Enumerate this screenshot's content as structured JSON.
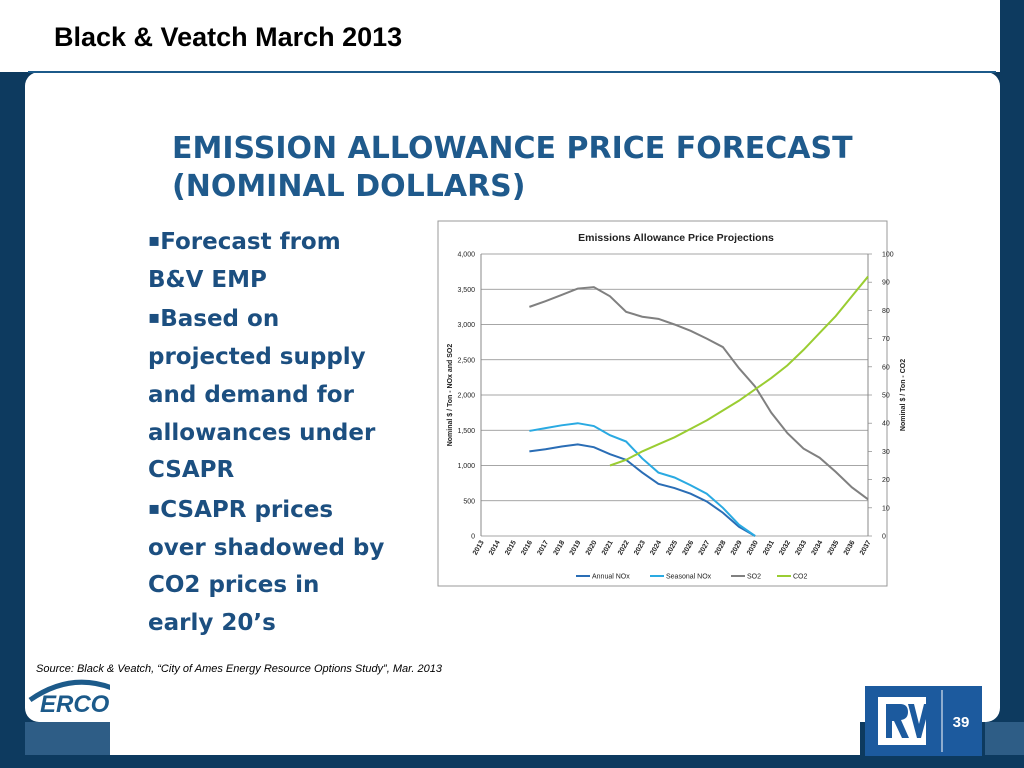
{
  "header": {
    "title": "Black & Veatch March 2013"
  },
  "slide_title_lines": [
    "EMISSION ALLOWANCE PRICE FORECAST",
    "(NOMINAL DOLLARS)"
  ],
  "bullets": [
    "Forecast from B&V EMP",
    "Based on projected supply and demand for allowances under CSAPR",
    "CSAPR prices over shadowed by CO2 prices in early 20’s"
  ],
  "source": "Source: Black & Veatch, “City of Ames Energy Resource Options Study”, Mar. 2013",
  "footer": {
    "logo": "ERCOT",
    "page_number": "39"
  },
  "chart_data": {
    "type": "line",
    "title": "Emissions Allowance Price Projections",
    "ylabel": "Nominal $ / Ton - NOx and SO2",
    "y2label": "Nominal $ / Ton - CO2",
    "categories": [
      "2013",
      "2014",
      "2015",
      "2016",
      "2017",
      "2018",
      "2019",
      "2020",
      "2021",
      "2022",
      "2023",
      "2024",
      "2025",
      "2026",
      "2027",
      "2028",
      "2029",
      "2030",
      "2031",
      "2032",
      "2033",
      "2034",
      "2035",
      "2036",
      "2037"
    ],
    "series": [
      {
        "name": "Annual NOx",
        "color": "#2a6db5",
        "values": [
          null,
          null,
          null,
          1200,
          1230,
          1270,
          1300,
          1260,
          1160,
          1080,
          900,
          740,
          680,
          600,
          490,
          330,
          130,
          0,
          null,
          null,
          null,
          null,
          null,
          null,
          null
        ]
      },
      {
        "name": "Seasonal NOx",
        "color": "#2aaae2",
        "values": [
          null,
          null,
          null,
          1490,
          1530,
          1570,
          1600,
          1560,
          1430,
          1340,
          1100,
          900,
          830,
          720,
          600,
          400,
          160,
          0,
          null,
          null,
          null,
          null,
          null,
          null,
          null
        ]
      },
      {
        "name": "SO2",
        "color": "#808080",
        "values": [
          null,
          null,
          null,
          3250,
          3330,
          3420,
          3510,
          3530,
          3400,
          3180,
          3110,
          3080,
          3000,
          2910,
          2800,
          2680,
          2380,
          2120,
          1750,
          1460,
          1240,
          1110,
          910,
          690,
          520
        ]
      },
      {
        "name": "CO2",
        "color": "#9acd32",
        "axis": "y2",
        "values": [
          null,
          null,
          null,
          null,
          null,
          null,
          null,
          null,
          25,
          27,
          30,
          32.5,
          35,
          38,
          41,
          44.5,
          48,
          52,
          56,
          60.5,
          66,
          72,
          78,
          85,
          92
        ]
      }
    ],
    "ylim": [
      0,
      4000
    ],
    "yticks": [
      0,
      500,
      {
        "value": 1000,
        "label": "1,000"
      },
      {
        "value": 1500,
        "label": "1,500"
      },
      {
        "value": 2000,
        "label": "2,000"
      },
      {
        "value": 2500,
        "label": "2,500"
      },
      {
        "value": 3000,
        "label": "3,000"
      },
      {
        "value": 3500,
        "label": "3,500"
      },
      {
        "value": 4000,
        "label": "4,000"
      }
    ],
    "y2lim": [
      0,
      100
    ],
    "y2ticks": [
      0,
      10,
      20,
      30,
      40,
      50,
      60,
      70,
      80,
      90,
      100
    ],
    "grid": true,
    "legend": "bottom"
  }
}
